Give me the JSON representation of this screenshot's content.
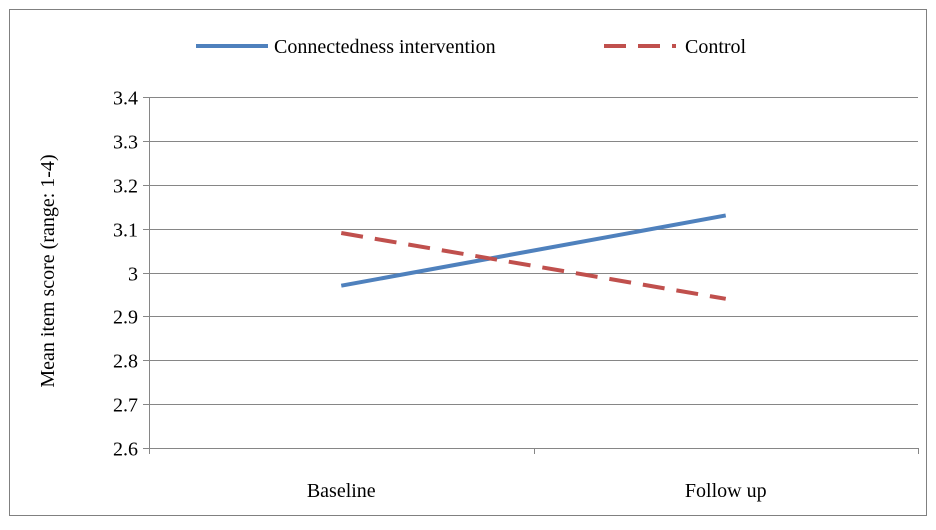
{
  "chart_data": {
    "type": "line",
    "categories": [
      "Baseline",
      "Follow up"
    ],
    "series": [
      {
        "name": "Connectedness intervention",
        "values": [
          2.97,
          3.13
        ],
        "color": "#4F81BD",
        "line_style": "solid"
      },
      {
        "name": "Control",
        "values": [
          3.09,
          2.94
        ],
        "color": "#C0504D",
        "line_style": "dashed"
      }
    ],
    "title": "",
    "xlabel": "",
    "ylabel": "Mean item score (range: 1-4)",
    "ylim": [
      2.6,
      3.4
    ],
    "yticks": [
      "2.6",
      "2.7",
      "2.8",
      "2.9",
      "3",
      "3.1",
      "3.2",
      "3.3",
      "3.4"
    ],
    "grid": true,
    "legend_position": "top"
  }
}
